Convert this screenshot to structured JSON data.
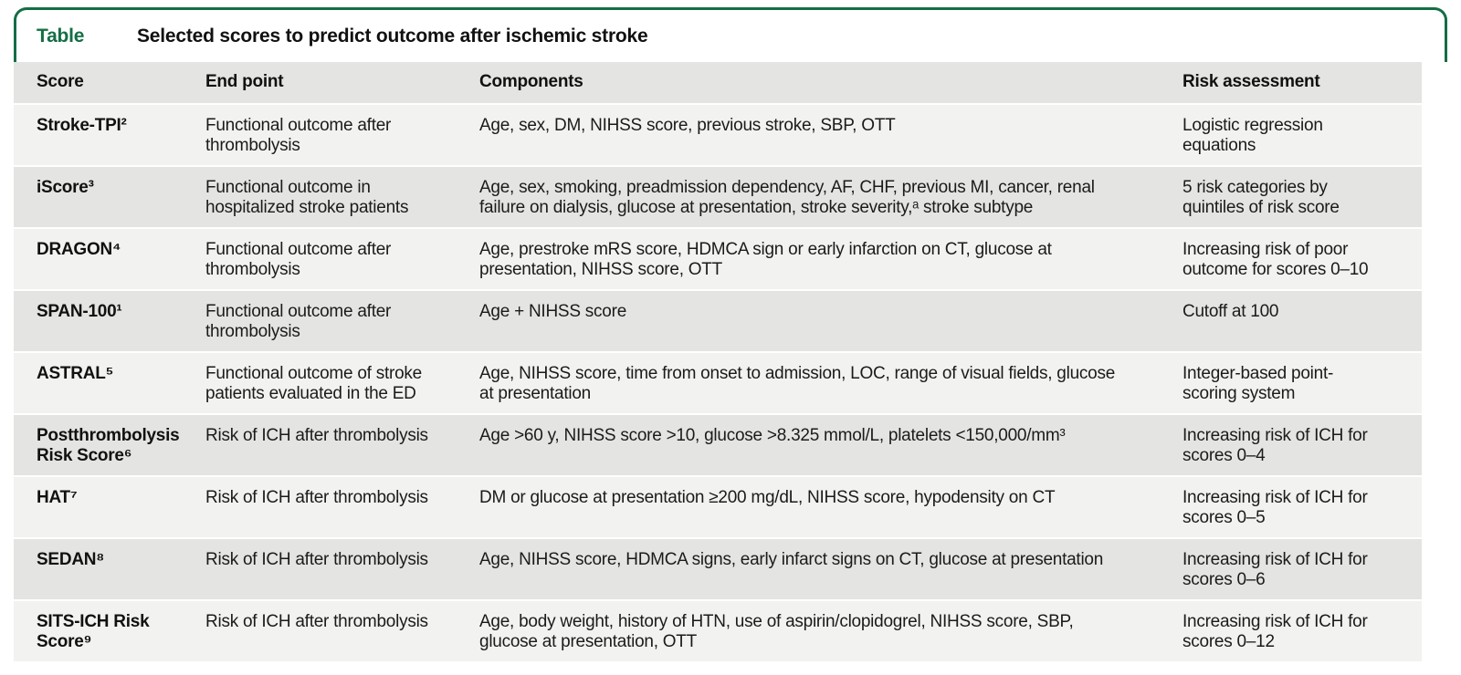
{
  "colors": {
    "accent_green": "#146e45",
    "row_light": "#f2f2f0",
    "row_dark": "#e4e4e2",
    "text": "#1b1b1b"
  },
  "title_bar": {
    "label": "Table",
    "title": "Selected scores to predict outcome after ischemic stroke"
  },
  "table": {
    "columns": [
      "Score",
      "End point",
      "Components",
      "Risk assessment"
    ],
    "rows": [
      {
        "score": "Stroke-TPI²",
        "end_point": "Functional outcome after\nthrombolysis",
        "components": "Age, sex, DM, NIHSS score, previous stroke, SBP, OTT",
        "risk": "Logistic regression\nequations"
      },
      {
        "score": "iScore³",
        "end_point": "Functional outcome in\nhospitalized stroke patients",
        "components": "Age, sex, smoking, preadmission dependency, AF, CHF, previous MI, cancer, renal\nfailure on dialysis, glucose at presentation, stroke severity,ᵃ stroke subtype",
        "risk": "5 risk categories by\nquintiles of risk score"
      },
      {
        "score": "DRAGON⁴",
        "end_point": "Functional outcome after\nthrombolysis",
        "components": "Age, prestroke mRS score, HDMCA sign or early infarction on CT, glucose at\npresentation, NIHSS score, OTT",
        "risk": "Increasing risk of poor\noutcome for scores 0–10"
      },
      {
        "score": "SPAN-100¹",
        "end_point": "Functional outcome after\nthrombolysis",
        "components": "Age + NIHSS score",
        "risk": "Cutoff at 100"
      },
      {
        "score": "ASTRAL⁵",
        "end_point": "Functional outcome of stroke\npatients evaluated in the ED",
        "components": "Age, NIHSS score, time from onset to admission, LOC, range of visual fields, glucose\nat presentation",
        "risk": "Integer-based point-\nscoring system"
      },
      {
        "score": "Postthrombolysis\nRisk Score⁶",
        "end_point": "Risk of ICH after thrombolysis",
        "components": "Age >60 y, NIHSS score >10, glucose >8.325 mmol/L, platelets <150,000/mm³",
        "risk": "Increasing risk of ICH for\nscores 0–4"
      },
      {
        "score": "HAT⁷",
        "end_point": "Risk of ICH after thrombolysis",
        "components": "DM or glucose at presentation ≥200 mg/dL, NIHSS score, hypodensity on CT",
        "risk": "Increasing risk of ICH for\nscores 0–5"
      },
      {
        "score": "SEDAN⁸",
        "end_point": "Risk of ICH after thrombolysis",
        "components": "Age, NIHSS score, HDMCA signs, early infarct signs on CT, glucose at presentation",
        "risk": "Increasing risk of ICH for\nscores 0–6"
      },
      {
        "score": "SITS-ICH Risk\nScore⁹",
        "end_point": "Risk of ICH after thrombolysis",
        "components": "Age, body weight, history of HTN, use of aspirin/clopidogrel, NIHSS score, SBP,\nglucose at presentation, OTT",
        "risk": "Increasing risk of ICH for\nscores 0–12"
      }
    ]
  }
}
